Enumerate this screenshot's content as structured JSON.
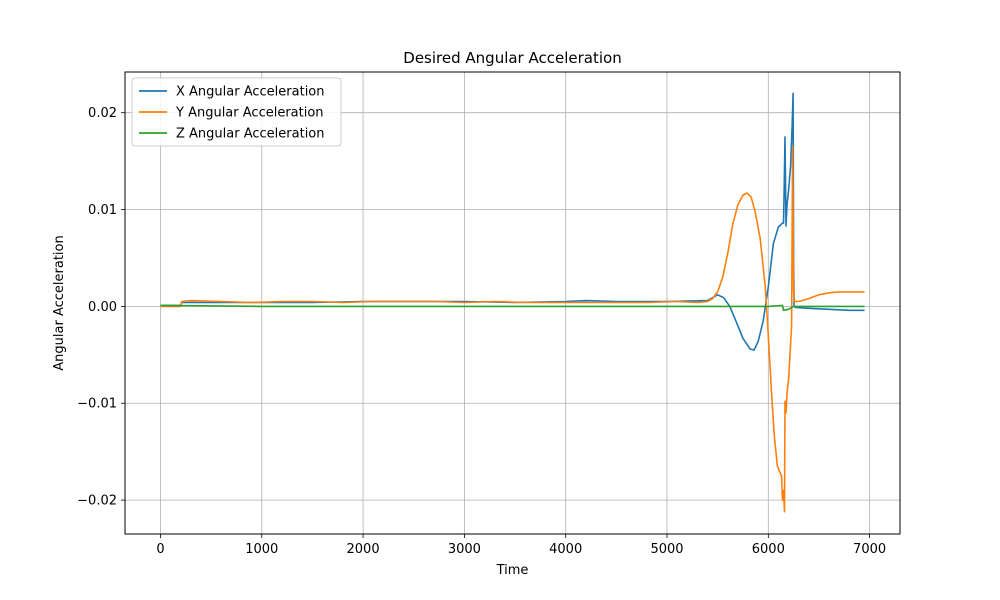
{
  "chart_data": {
    "type": "line",
    "title": "Desired Angular Acceleration",
    "xlabel": "Time",
    "ylabel": "Angular Acceleration",
    "xlim": [
      -350,
      7300
    ],
    "ylim": [
      -0.0235,
      0.0242
    ],
    "xticks": [
      0,
      1000,
      2000,
      3000,
      4000,
      5000,
      6000,
      7000
    ],
    "yticks": [
      -0.02,
      -0.01,
      0.0,
      0.01,
      0.02
    ],
    "xtick_labels": [
      "0",
      "1000",
      "2000",
      "3000",
      "4000",
      "5000",
      "6000",
      "7000"
    ],
    "ytick_labels": [
      "−0.02",
      "−0.01",
      "0.00",
      "0.01",
      "0.02"
    ],
    "grid": true,
    "legend_position": "top-left",
    "series": [
      {
        "name": "X Angular Acceleration",
        "color": "#1f77b4",
        "points": [
          [
            0,
            0.0001
          ],
          [
            200,
            0.0001
          ],
          [
            210,
            0.0004
          ],
          [
            500,
            0.0004
          ],
          [
            1000,
            0.0004
          ],
          [
            1500,
            0.0004
          ],
          [
            2000,
            0.0005
          ],
          [
            2500,
            0.0005
          ],
          [
            3000,
            0.0005
          ],
          [
            3500,
            0.0004
          ],
          [
            4000,
            0.0005
          ],
          [
            4200,
            0.0006
          ],
          [
            4500,
            0.0005
          ],
          [
            5000,
            0.0005
          ],
          [
            5400,
            0.0006
          ],
          [
            5450,
            0.0009
          ],
          [
            5500,
            0.0012
          ],
          [
            5560,
            0.0009
          ],
          [
            5620,
            0.0
          ],
          [
            5680,
            -0.0015
          ],
          [
            5750,
            -0.0033
          ],
          [
            5820,
            -0.0044
          ],
          [
            5860,
            -0.0045
          ],
          [
            5900,
            -0.0036
          ],
          [
            5950,
            -0.0015
          ],
          [
            6000,
            0.002
          ],
          [
            6050,
            0.0065
          ],
          [
            6100,
            0.0082
          ],
          [
            6140,
            0.0086
          ],
          [
            6150,
            0.0086
          ],
          [
            6155,
            0.011
          ],
          [
            6165,
            0.0175
          ],
          [
            6175,
            0.0083
          ],
          [
            6185,
            0.0105
          ],
          [
            6200,
            0.012
          ],
          [
            6220,
            0.0145
          ],
          [
            6235,
            0.0185
          ],
          [
            6245,
            0.022
          ],
          [
            6250,
            0.005
          ],
          [
            6255,
            0.0
          ],
          [
            6270,
            -0.0001
          ],
          [
            6400,
            -0.0002
          ],
          [
            6600,
            -0.0003
          ],
          [
            6800,
            -0.0004
          ],
          [
            6950,
            -0.0004
          ]
        ]
      },
      {
        "name": "Y Angular Acceleration",
        "color": "#ff7f0e",
        "points": [
          [
            0,
            0.0
          ],
          [
            200,
            0.0
          ],
          [
            210,
            0.0005
          ],
          [
            300,
            0.0006
          ],
          [
            600,
            0.0005
          ],
          [
            900,
            0.0004
          ],
          [
            1200,
            0.0005
          ],
          [
            1500,
            0.0005
          ],
          [
            1800,
            0.0004
          ],
          [
            2100,
            0.0005
          ],
          [
            2400,
            0.0005
          ],
          [
            2700,
            0.0005
          ],
          [
            3000,
            0.0004
          ],
          [
            3300,
            0.0005
          ],
          [
            3600,
            0.0004
          ],
          [
            3900,
            0.0004
          ],
          [
            4200,
            0.0004
          ],
          [
            4500,
            0.0004
          ],
          [
            4800,
            0.0004
          ],
          [
            5100,
            0.0005
          ],
          [
            5300,
            0.0004
          ],
          [
            5400,
            0.0005
          ],
          [
            5450,
            0.0008
          ],
          [
            5500,
            0.0015
          ],
          [
            5550,
            0.003
          ],
          [
            5600,
            0.0055
          ],
          [
            5650,
            0.0085
          ],
          [
            5700,
            0.0105
          ],
          [
            5750,
            0.0115
          ],
          [
            5790,
            0.0117
          ],
          [
            5830,
            0.0113
          ],
          [
            5870,
            0.0098
          ],
          [
            5920,
            0.007
          ],
          [
            5970,
            0.002
          ],
          [
            6000,
            -0.003
          ],
          [
            6030,
            -0.0085
          ],
          [
            6060,
            -0.0135
          ],
          [
            6090,
            -0.0165
          ],
          [
            6130,
            -0.0175
          ],
          [
            6140,
            -0.02
          ],
          [
            6150,
            -0.019
          ],
          [
            6160,
            -0.0212
          ],
          [
            6165,
            -0.0098
          ],
          [
            6175,
            -0.011
          ],
          [
            6185,
            -0.009
          ],
          [
            6200,
            -0.0075
          ],
          [
            6230,
            -0.002
          ],
          [
            6240,
            0.0165
          ],
          [
            6250,
            0.0015
          ],
          [
            6260,
            0.0005
          ],
          [
            6300,
            0.0005
          ],
          [
            6400,
            0.0008
          ],
          [
            6500,
            0.0012
          ],
          [
            6600,
            0.0014
          ],
          [
            6700,
            0.0015
          ],
          [
            6800,
            0.0015
          ],
          [
            6950,
            0.0015
          ]
        ]
      },
      {
        "name": "Z Angular Acceleration",
        "color": "#2ca02c",
        "points": [
          [
            0,
            0.0001
          ],
          [
            1000,
            0.0
          ],
          [
            2000,
            0.0
          ],
          [
            3000,
            0.0
          ],
          [
            4000,
            0.0
          ],
          [
            5000,
            0.0
          ],
          [
            5500,
            0.0
          ],
          [
            6000,
            0.0
          ],
          [
            6140,
            0.0001
          ],
          [
            6150,
            -0.0004
          ],
          [
            6200,
            -0.0003
          ],
          [
            6250,
            0.0
          ],
          [
            6500,
            0.0
          ],
          [
            6950,
            0.0
          ]
        ]
      }
    ]
  }
}
